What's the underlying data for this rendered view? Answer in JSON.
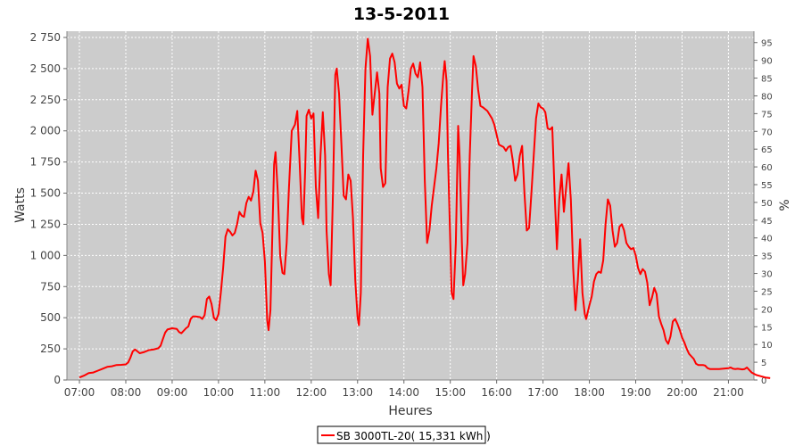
{
  "chart_data": {
    "type": "line",
    "title": "13-5-2011",
    "xlabel": "Heures",
    "ylabel": "Watts",
    "y2label": "%",
    "xlim": [
      6.73,
      21.55
    ],
    "ylim": [
      0,
      2800
    ],
    "y2lim": [
      0,
      98.2
    ],
    "x_ticks": [
      {
        "v": 7,
        "label": "07:00"
      },
      {
        "v": 8,
        "label": "08:00"
      },
      {
        "v": 9,
        "label": "09:00"
      },
      {
        "v": 10,
        "label": "10:00"
      },
      {
        "v": 11,
        "label": "11:00"
      },
      {
        "v": 12,
        "label": "12:00"
      },
      {
        "v": 13,
        "label": "13:00"
      },
      {
        "v": 14,
        "label": "14:00"
      },
      {
        "v": 15,
        "label": "15:00"
      },
      {
        "v": 16,
        "label": "16:00"
      },
      {
        "v": 17,
        "label": "17:00"
      },
      {
        "v": 18,
        "label": "18:00"
      },
      {
        "v": 19,
        "label": "19:00"
      },
      {
        "v": 20,
        "label": "20:00"
      },
      {
        "v": 21,
        "label": "21:00"
      }
    ],
    "y_ticks": [
      {
        "v": 0,
        "label": "0"
      },
      {
        "v": 250,
        "label": "250"
      },
      {
        "v": 500,
        "label": "500"
      },
      {
        "v": 750,
        "label": "750"
      },
      {
        "v": 1000,
        "label": "1 000"
      },
      {
        "v": 1250,
        "label": "1 250"
      },
      {
        "v": 1500,
        "label": "1 500"
      },
      {
        "v": 1750,
        "label": "1 750"
      },
      {
        "v": 2000,
        "label": "2 000"
      },
      {
        "v": 2250,
        "label": "2 250"
      },
      {
        "v": 2500,
        "label": "2 500"
      },
      {
        "v": 2750,
        "label": "2 750"
      }
    ],
    "y2_ticks": [
      {
        "v": 0,
        "label": "0"
      },
      {
        "v": 5,
        "label": "5"
      },
      {
        "v": 10,
        "label": "10"
      },
      {
        "v": 15,
        "label": "15"
      },
      {
        "v": 20,
        "label": "20"
      },
      {
        "v": 25,
        "label": "25"
      },
      {
        "v": 30,
        "label": "30"
      },
      {
        "v": 35,
        "label": "35"
      },
      {
        "v": 40,
        "label": "40"
      },
      {
        "v": 45,
        "label": "45"
      },
      {
        "v": 50,
        "label": "50"
      },
      {
        "v": 55,
        "label": "55"
      },
      {
        "v": 60,
        "label": "60"
      },
      {
        "v": 65,
        "label": "65"
      },
      {
        "v": 70,
        "label": "70"
      },
      {
        "v": 75,
        "label": "75"
      },
      {
        "v": 80,
        "label": "80"
      },
      {
        "v": 85,
        "label": "85"
      },
      {
        "v": 90,
        "label": "90"
      },
      {
        "v": 95,
        "label": "95"
      }
    ],
    "grid": true,
    "legend": "bottom-center",
    "plot_background": "#cccccc",
    "series": [
      {
        "name": "SB 3000TL-20( 15,331 kWh )",
        "color": "#ff0000",
        "points": [
          [
            7.0,
            20
          ],
          [
            7.1,
            35
          ],
          [
            7.2,
            55
          ],
          [
            7.3,
            60
          ],
          [
            7.4,
            75
          ],
          [
            7.5,
            90
          ],
          [
            7.6,
            105
          ],
          [
            7.7,
            110
          ],
          [
            7.8,
            120
          ],
          [
            7.9,
            122
          ],
          [
            8.0,
            125
          ],
          [
            8.05,
            140
          ],
          [
            8.1,
            180
          ],
          [
            8.15,
            230
          ],
          [
            8.2,
            245
          ],
          [
            8.25,
            230
          ],
          [
            8.3,
            215
          ],
          [
            8.4,
            225
          ],
          [
            8.5,
            240
          ],
          [
            8.6,
            245
          ],
          [
            8.7,
            255
          ],
          [
            8.75,
            275
          ],
          [
            8.8,
            330
          ],
          [
            8.85,
            380
          ],
          [
            8.9,
            405
          ],
          [
            9.0,
            415
          ],
          [
            9.1,
            410
          ],
          [
            9.15,
            385
          ],
          [
            9.2,
            375
          ],
          [
            9.3,
            415
          ],
          [
            9.35,
            430
          ],
          [
            9.4,
            490
          ],
          [
            9.45,
            510
          ],
          [
            9.5,
            510
          ],
          [
            9.6,
            505
          ],
          [
            9.65,
            490
          ],
          [
            9.7,
            520
          ],
          [
            9.75,
            650
          ],
          [
            9.8,
            670
          ],
          [
            9.85,
            610
          ],
          [
            9.9,
            500
          ],
          [
            9.95,
            480
          ],
          [
            10.0,
            530
          ],
          [
            10.05,
            700
          ],
          [
            10.1,
            900
          ],
          [
            10.15,
            1150
          ],
          [
            10.2,
            1210
          ],
          [
            10.25,
            1190
          ],
          [
            10.3,
            1160
          ],
          [
            10.35,
            1180
          ],
          [
            10.4,
            1250
          ],
          [
            10.45,
            1350
          ],
          [
            10.5,
            1320
          ],
          [
            10.55,
            1310
          ],
          [
            10.6,
            1420
          ],
          [
            10.65,
            1470
          ],
          [
            10.7,
            1440
          ],
          [
            10.75,
            1510
          ],
          [
            10.8,
            1680
          ],
          [
            10.85,
            1600
          ],
          [
            10.9,
            1260
          ],
          [
            10.95,
            1180
          ],
          [
            11.0,
            950
          ],
          [
            11.05,
            480
          ],
          [
            11.08,
            400
          ],
          [
            11.12,
            560
          ],
          [
            11.2,
            1730
          ],
          [
            11.23,
            1830
          ],
          [
            11.28,
            1500
          ],
          [
            11.33,
            1000
          ],
          [
            11.38,
            860
          ],
          [
            11.42,
            850
          ],
          [
            11.47,
            1100
          ],
          [
            11.52,
            1550
          ],
          [
            11.58,
            2000
          ],
          [
            11.65,
            2050
          ],
          [
            11.7,
            2160
          ],
          [
            11.75,
            1750
          ],
          [
            11.8,
            1300
          ],
          [
            11.83,
            1250
          ],
          [
            11.87,
            1700
          ],
          [
            11.9,
            2120
          ],
          [
            11.95,
            2170
          ],
          [
            12.0,
            2100
          ],
          [
            12.05,
            2140
          ],
          [
            12.1,
            1550
          ],
          [
            12.15,
            1300
          ],
          [
            12.2,
            1800
          ],
          [
            12.25,
            2150
          ],
          [
            12.3,
            1800
          ],
          [
            12.33,
            1200
          ],
          [
            12.38,
            850
          ],
          [
            12.42,
            760
          ],
          [
            12.47,
            1500
          ],
          [
            12.52,
            2450
          ],
          [
            12.55,
            2500
          ],
          [
            12.6,
            2300
          ],
          [
            12.65,
            1900
          ],
          [
            12.7,
            1480
          ],
          [
            12.75,
            1450
          ],
          [
            12.8,
            1650
          ],
          [
            12.85,
            1600
          ],
          [
            12.9,
            1300
          ],
          [
            12.95,
            800
          ],
          [
            13.0,
            500
          ],
          [
            13.03,
            440
          ],
          [
            13.07,
            700
          ],
          [
            13.12,
            1800
          ],
          [
            13.17,
            2500
          ],
          [
            13.22,
            2740
          ],
          [
            13.27,
            2600
          ],
          [
            13.32,
            2130
          ],
          [
            13.37,
            2300
          ],
          [
            13.42,
            2470
          ],
          [
            13.47,
            2300
          ],
          [
            13.5,
            1700
          ],
          [
            13.55,
            1550
          ],
          [
            13.6,
            1580
          ],
          [
            13.65,
            2350
          ],
          [
            13.7,
            2580
          ],
          [
            13.75,
            2620
          ],
          [
            13.8,
            2550
          ],
          [
            13.85,
            2380
          ],
          [
            13.9,
            2340
          ],
          [
            13.95,
            2370
          ],
          [
            14.0,
            2200
          ],
          [
            14.05,
            2180
          ],
          [
            14.1,
            2320
          ],
          [
            14.15,
            2500
          ],
          [
            14.2,
            2540
          ],
          [
            14.25,
            2460
          ],
          [
            14.3,
            2430
          ],
          [
            14.35,
            2550
          ],
          [
            14.4,
            2350
          ],
          [
            14.45,
            1600
          ],
          [
            14.5,
            1100
          ],
          [
            14.55,
            1200
          ],
          [
            14.6,
            1400
          ],
          [
            14.65,
            1550
          ],
          [
            14.7,
            1700
          ],
          [
            14.75,
            1900
          ],
          [
            14.8,
            2200
          ],
          [
            14.85,
            2450
          ],
          [
            14.88,
            2560
          ],
          [
            14.92,
            2400
          ],
          [
            14.95,
            1800
          ],
          [
            15.0,
            1100
          ],
          [
            15.03,
            700
          ],
          [
            15.07,
            650
          ],
          [
            15.12,
            1100
          ],
          [
            15.17,
            2040
          ],
          [
            15.2,
            1800
          ],
          [
            15.25,
            1100
          ],
          [
            15.28,
            760
          ],
          [
            15.32,
            850
          ],
          [
            15.37,
            1100
          ],
          [
            15.42,
            1800
          ],
          [
            15.47,
            2330
          ],
          [
            15.5,
            2600
          ],
          [
            15.55,
            2520
          ],
          [
            15.6,
            2330
          ],
          [
            15.65,
            2200
          ],
          [
            15.7,
            2190
          ],
          [
            15.8,
            2160
          ],
          [
            15.9,
            2100
          ],
          [
            15.95,
            2050
          ],
          [
            16.0,
            1970
          ],
          [
            16.05,
            1890
          ],
          [
            16.1,
            1880
          ],
          [
            16.15,
            1870
          ],
          [
            16.2,
            1840
          ],
          [
            16.25,
            1870
          ],
          [
            16.3,
            1880
          ],
          [
            16.35,
            1760
          ],
          [
            16.4,
            1600
          ],
          [
            16.45,
            1650
          ],
          [
            16.5,
            1800
          ],
          [
            16.55,
            1880
          ],
          [
            16.6,
            1500
          ],
          [
            16.65,
            1200
          ],
          [
            16.7,
            1220
          ],
          [
            16.75,
            1500
          ],
          [
            16.8,
            1800
          ],
          [
            16.85,
            2100
          ],
          [
            16.9,
            2220
          ],
          [
            16.95,
            2190
          ],
          [
            17.0,
            2180
          ],
          [
            17.05,
            2150
          ],
          [
            17.1,
            2020
          ],
          [
            17.15,
            2010
          ],
          [
            17.2,
            2030
          ],
          [
            17.25,
            1500
          ],
          [
            17.3,
            1050
          ],
          [
            17.35,
            1450
          ],
          [
            17.4,
            1650
          ],
          [
            17.45,
            1350
          ],
          [
            17.5,
            1550
          ],
          [
            17.55,
            1740
          ],
          [
            17.6,
            1450
          ],
          [
            17.65,
            900
          ],
          [
            17.7,
            560
          ],
          [
            17.75,
            800
          ],
          [
            17.8,
            1130
          ],
          [
            17.85,
            700
          ],
          [
            17.9,
            530
          ],
          [
            17.93,
            490
          ],
          [
            18.0,
            600
          ],
          [
            18.05,
            670
          ],
          [
            18.1,
            790
          ],
          [
            18.15,
            850
          ],
          [
            18.2,
            870
          ],
          [
            18.25,
            860
          ],
          [
            18.3,
            960
          ],
          [
            18.35,
            1250
          ],
          [
            18.4,
            1450
          ],
          [
            18.45,
            1400
          ],
          [
            18.5,
            1200
          ],
          [
            18.55,
            1070
          ],
          [
            18.6,
            1100
          ],
          [
            18.65,
            1230
          ],
          [
            18.7,
            1250
          ],
          [
            18.75,
            1200
          ],
          [
            18.8,
            1100
          ],
          [
            18.85,
            1070
          ],
          [
            18.9,
            1050
          ],
          [
            18.95,
            1060
          ],
          [
            19.0,
            1000
          ],
          [
            19.05,
            900
          ],
          [
            19.1,
            850
          ],
          [
            19.15,
            890
          ],
          [
            19.2,
            870
          ],
          [
            19.25,
            780
          ],
          [
            19.3,
            600
          ],
          [
            19.35,
            660
          ],
          [
            19.4,
            740
          ],
          [
            19.45,
            690
          ],
          [
            19.5,
            510
          ],
          [
            19.55,
            450
          ],
          [
            19.6,
            400
          ],
          [
            19.65,
            320
          ],
          [
            19.7,
            290
          ],
          [
            19.75,
            350
          ],
          [
            19.8,
            470
          ],
          [
            19.85,
            490
          ],
          [
            19.9,
            450
          ],
          [
            19.95,
            400
          ],
          [
            20.0,
            340
          ],
          [
            20.05,
            300
          ],
          [
            20.1,
            250
          ],
          [
            20.15,
            210
          ],
          [
            20.2,
            190
          ],
          [
            20.25,
            170
          ],
          [
            20.3,
            130
          ],
          [
            20.35,
            120
          ],
          [
            20.4,
            120
          ],
          [
            20.45,
            120
          ],
          [
            20.5,
            115
          ],
          [
            20.55,
            95
          ],
          [
            20.6,
            88
          ],
          [
            20.7,
            88
          ],
          [
            20.8,
            88
          ],
          [
            20.9,
            92
          ],
          [
            21.0,
            95
          ],
          [
            21.05,
            100
          ],
          [
            21.1,
            90
          ],
          [
            21.15,
            88
          ],
          [
            21.2,
            90
          ],
          [
            21.3,
            85
          ],
          [
            21.35,
            88
          ],
          [
            21.4,
            100
          ],
          [
            21.45,
            80
          ],
          [
            21.5,
            60
          ],
          [
            21.6,
            40
          ],
          [
            21.7,
            30
          ],
          [
            21.8,
            20
          ],
          [
            21.9,
            15
          ]
        ]
      }
    ]
  }
}
